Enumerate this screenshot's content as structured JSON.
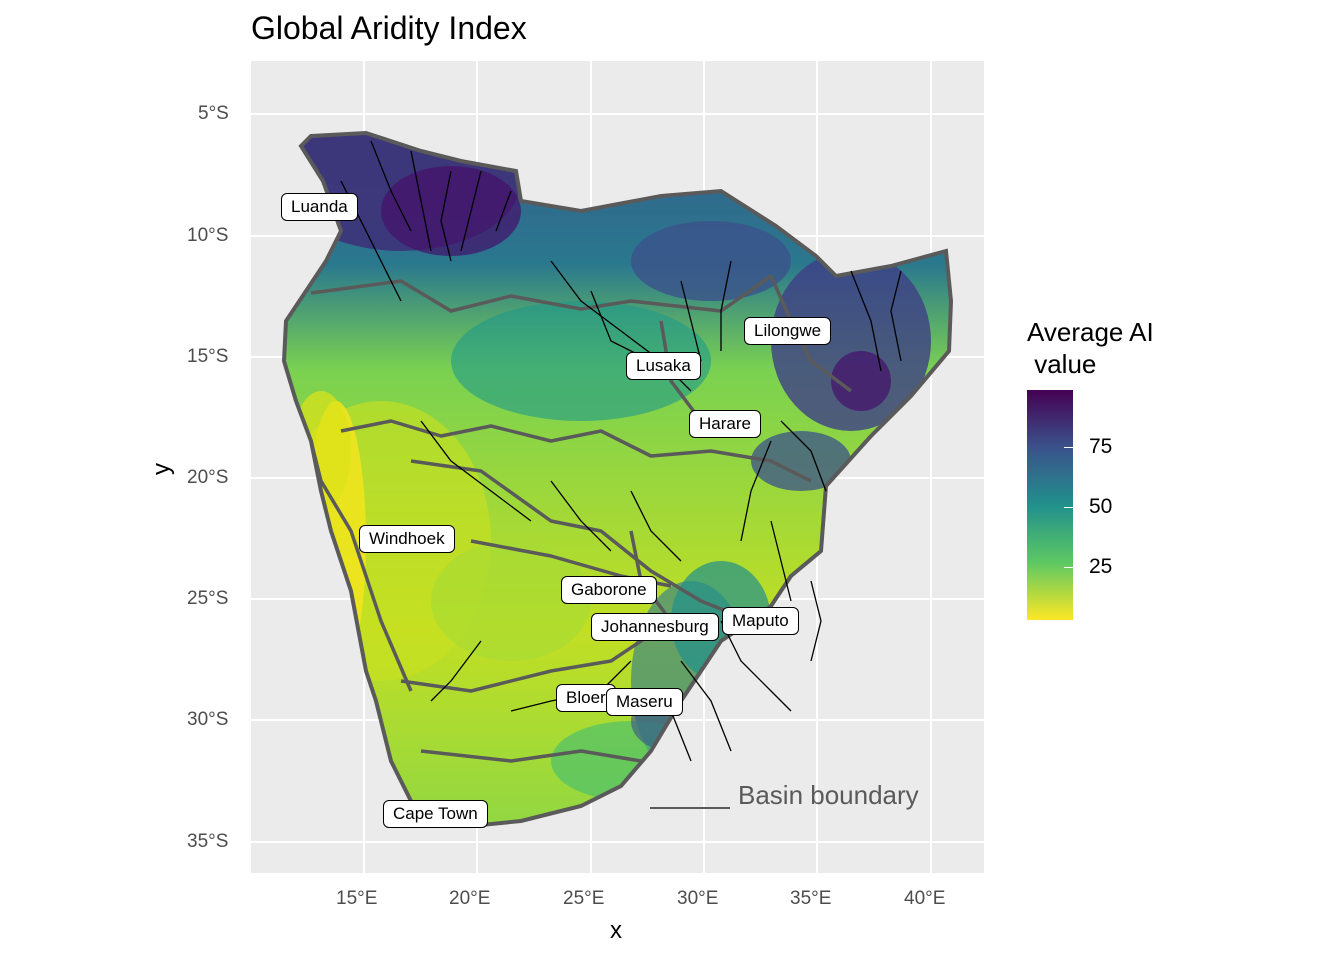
{
  "title": "Global Aridity Index",
  "axes": {
    "x_title": "x",
    "y_title": "y",
    "x_ticks": [
      "15°E",
      "20°E",
      "25°E",
      "30°E",
      "35°E",
      "40°E"
    ],
    "y_ticks": [
      "5°S",
      "10°S",
      "15°S",
      "20°S",
      "25°S",
      "30°S",
      "35°S"
    ]
  },
  "legend": {
    "title": "Average AI\n value",
    "ticks": [
      "75",
      "50",
      "25"
    ],
    "colors": [
      "#440154",
      "#3B528B",
      "#21908C",
      "#5DC863",
      "#FDE725"
    ]
  },
  "cities": [
    {
      "name": "Luanda"
    },
    {
      "name": "Lilongwe"
    },
    {
      "name": "Lusaka"
    },
    {
      "name": "Harare"
    },
    {
      "name": "Windhoek"
    },
    {
      "name": "Gaborone"
    },
    {
      "name": "Maputo"
    },
    {
      "name": "Johannesburg"
    },
    {
      "name": "Bloer"
    },
    {
      "name": "Maseru"
    },
    {
      "name": "Cape Town"
    }
  ],
  "annotation": {
    "basin_label": "Basin boundary"
  },
  "colors": {
    "panel_bg": "#EBEBEB",
    "grid": "#FFFFFF",
    "basin": "#5A5A5A",
    "rivers": "#000000"
  }
}
